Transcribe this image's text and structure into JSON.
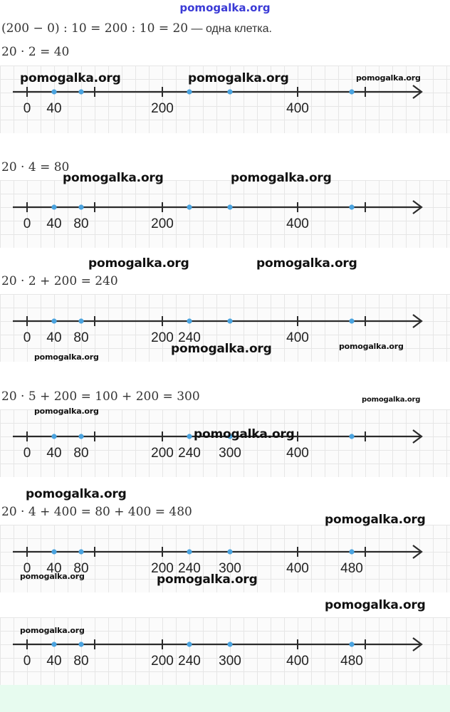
{
  "site_header": "pomogalka.org",
  "intro": {
    "math": "(200 − 0) : 10 = 200 : 10 = 20",
    "text": " — одна клетка."
  },
  "sections": [
    {
      "equation": "20 · 2 = 40",
      "labels": [
        "0",
        "40",
        "200",
        "400"
      ],
      "label_values": [
        0,
        40,
        200,
        400
      ],
      "points": [
        40,
        80,
        240,
        300,
        480
      ]
    },
    {
      "equation": "20 · 4 = 80",
      "labels": [
        "0",
        "40",
        "80",
        "200",
        "400"
      ],
      "label_values": [
        0,
        40,
        80,
        200,
        400
      ],
      "points": [
        40,
        80,
        240,
        300,
        480
      ]
    },
    {
      "equation": "20 · 2 + 200 = 240",
      "labels": [
        "0",
        "40",
        "80",
        "200",
        "240",
        "400"
      ],
      "label_values": [
        0,
        40,
        80,
        200,
        240,
        400
      ],
      "points": [
        40,
        80,
        240,
        300,
        480
      ]
    },
    {
      "equation": "20 · 5 + 200 = 100 + 200 = 300",
      "labels": [
        "0",
        "40",
        "80",
        "200",
        "240",
        "300",
        "400"
      ],
      "label_values": [
        0,
        40,
        80,
        200,
        240,
        300,
        400
      ],
      "points": [
        40,
        80,
        240,
        300,
        480
      ]
    },
    {
      "equation": "20 · 4 + 400 = 80 + 400 = 480",
      "labels": [
        "0",
        "40",
        "80",
        "200",
        "240",
        "300",
        "400",
        "480"
      ],
      "label_values": [
        0,
        40,
        80,
        200,
        240,
        300,
        400,
        480
      ],
      "points": [
        40,
        80,
        240,
        300,
        480
      ]
    },
    {
      "equation": "",
      "labels": [
        "0",
        "40",
        "80",
        "200",
        "240",
        "300",
        "400",
        "480"
      ],
      "label_values": [
        0,
        40,
        80,
        200,
        240,
        300,
        400,
        480
      ],
      "points": [
        40,
        80,
        240,
        300,
        480
      ]
    }
  ],
  "axis": {
    "tick_values": [
      0,
      100,
      200,
      400,
      500
    ],
    "scale_per_cell": 20,
    "line_color": "#2b2b2b",
    "point_color": "#4aa3df"
  },
  "watermarks": [
    "pomogalka.org",
    "pomogalka.org",
    "pomogalka.org",
    "pomogalka.org",
    "pomogalka.org",
    "pomogalka.org",
    "pomogalka.org",
    "pomogalka.org",
    "pomogalka.org",
    "pomogalka.org",
    "pomogalka.org",
    "pomogalka.org",
    "pomogalka.org",
    "pomogalka.org",
    "pomogalka.org",
    "pomogalka.org",
    "pomogalka.org",
    "pomogalka.org",
    "pomogalka.org",
    "pomogalka.org"
  ]
}
